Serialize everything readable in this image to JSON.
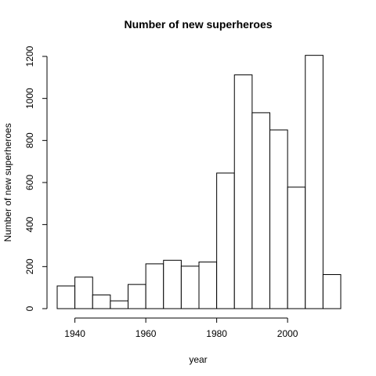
{
  "chart_data": {
    "type": "bar",
    "title": "Number of new superheroes",
    "xlabel": "year",
    "ylabel": "Number of new superheroes",
    "bin_edges": [
      1935,
      1940,
      1945,
      1950,
      1955,
      1960,
      1965,
      1970,
      1975,
      1980,
      1985,
      1990,
      1995,
      2000,
      2005,
      2010,
      2015
    ],
    "values": [
      108,
      150,
      65,
      37,
      115,
      213,
      230,
      202,
      222,
      645,
      1112,
      932,
      850,
      578,
      1205,
      162
    ],
    "xlim": [
      1935,
      2015
    ],
    "ylim": [
      0,
      1200
    ],
    "x_ticks": [
      1940,
      1960,
      1980,
      2000
    ],
    "y_ticks": [
      0,
      200,
      400,
      600,
      800,
      1000,
      1200
    ],
    "grid": false,
    "legend": "none"
  }
}
